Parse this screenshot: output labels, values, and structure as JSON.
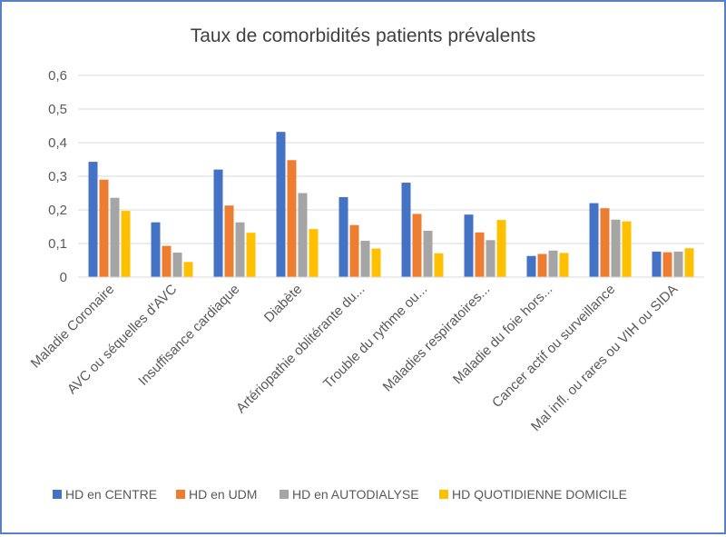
{
  "chart_data": {
    "type": "bar",
    "title": "Taux de comorbidités patients prévalents",
    "xlabel": "",
    "ylabel": "",
    "ylim": [
      0,
      0.6
    ],
    "yticks": [
      "0",
      "0,1",
      "0,2",
      "0,3",
      "0,4",
      "0,5",
      "0,6"
    ],
    "grid": true,
    "legend_position": "bottom",
    "categories": [
      "Maladie Coronaire",
      "AVC ou séquelles d'AVC",
      "Insuffisance cardiaque",
      "Diabète",
      "Artériopathie oblitérante du...",
      "Trouble du rythme ou...",
      "Maladies respiratoires...",
      "Maladie du foie hors...",
      "Cancer actif ou surveillance",
      "Mal infl. ou rares ou VIH ou SIDA"
    ],
    "series": [
      {
        "name": "HD en CENTRE",
        "color": "#4472c4",
        "values": [
          0.343,
          0.163,
          0.32,
          0.432,
          0.238,
          0.281,
          0.186,
          0.063,
          0.22,
          0.076
        ]
      },
      {
        "name": "HD en UDM",
        "color": "#ed7d31",
        "values": [
          0.29,
          0.093,
          0.213,
          0.348,
          0.155,
          0.188,
          0.133,
          0.069,
          0.205,
          0.074
        ]
      },
      {
        "name": "HD en AUTODIALYSE",
        "color": "#a5a5a5",
        "values": [
          0.236,
          0.073,
          0.163,
          0.25,
          0.108,
          0.138,
          0.11,
          0.079,
          0.171,
          0.076
        ]
      },
      {
        "name": "HD QUOTIDIENNE DOMICILE",
        "color": "#ffc000",
        "values": [
          0.197,
          0.045,
          0.132,
          0.143,
          0.085,
          0.071,
          0.17,
          0.072,
          0.166,
          0.086
        ]
      }
    ]
  }
}
